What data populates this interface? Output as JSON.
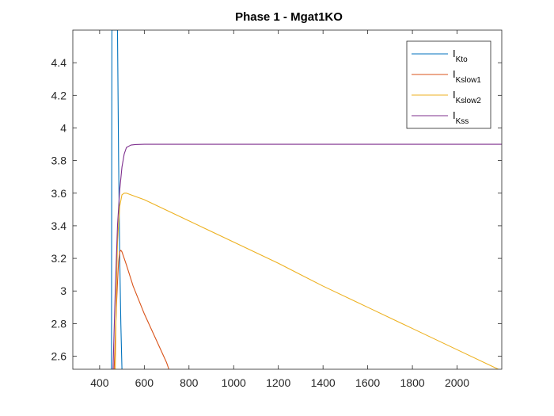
{
  "chart_data": {
    "type": "line",
    "title": "Phase 1 - Mgat1KO",
    "xlabel": "",
    "ylabel": "",
    "xlim": [
      280,
      2200
    ],
    "ylim": [
      2.52,
      4.6
    ],
    "x_ticks": [
      400,
      600,
      800,
      1000,
      1200,
      1400,
      1600,
      1800,
      2000
    ],
    "y_ticks": [
      2.6,
      2.8,
      3,
      3.2,
      3.4,
      3.6,
      3.8,
      4,
      4.2,
      4.4
    ],
    "x_tick_labels": [
      "400",
      "600",
      "800",
      "1000",
      "1200",
      "1400",
      "1600",
      "1800",
      "2000"
    ],
    "y_tick_labels": [
      "2.6",
      "2.8",
      "3",
      "3.2",
      "3.4",
      "3.6",
      "3.8",
      "4",
      "4.2",
      "4.4"
    ],
    "grid": false,
    "legend_position": "top-right",
    "series": [
      {
        "name": "I_Kto",
        "legend_main": "I",
        "legend_sub": "Kto",
        "color": "#0072BD",
        "x": [
          453,
          455,
          480,
          485,
          490,
          495,
          500
        ],
        "y": [
          2.52,
          4.6,
          4.6,
          3.8,
          3.2,
          2.8,
          2.52
        ]
      },
      {
        "name": "I_Kslow1",
        "legend_main": "I",
        "legend_sub": "Kslow1",
        "color": "#D95319",
        "x": [
          465,
          470,
          475,
          480,
          485,
          490,
          495,
          500,
          520,
          550,
          600,
          650,
          700,
          710
        ],
        "y": [
          2.52,
          2.7,
          2.9,
          3.05,
          3.18,
          3.24,
          3.25,
          3.24,
          3.16,
          3.03,
          2.86,
          2.71,
          2.56,
          2.52
        ]
      },
      {
        "name": "I_Kslow2",
        "legend_main": "I",
        "legend_sub": "Kslow2",
        "color": "#EDB120",
        "x": [
          470,
          475,
          480,
          490,
          500,
          510,
          520,
          540,
          600,
          800,
          1000,
          1200,
          1400,
          1600,
          1800,
          2000,
          2200
        ],
        "y": [
          2.52,
          3.0,
          3.3,
          3.52,
          3.59,
          3.6,
          3.6,
          3.59,
          3.56,
          3.43,
          3.3,
          3.17,
          3.03,
          2.9,
          2.77,
          2.64,
          2.51
        ]
      },
      {
        "name": "I_Kss",
        "legend_main": "I",
        "legend_sub": "Kss",
        "color": "#7E2F8E",
        "x": [
          460,
          470,
          480,
          490,
          500,
          510,
          520,
          540,
          560,
          600,
          700,
          1000,
          1500,
          2000,
          2200
        ],
        "y": [
          2.52,
          3.0,
          3.4,
          3.62,
          3.76,
          3.84,
          3.88,
          3.895,
          3.898,
          3.9,
          3.9,
          3.9,
          3.9,
          3.9,
          3.9
        ]
      }
    ]
  },
  "colors": {
    "axis": "#262626",
    "background": "#ffffff",
    "legend_border": "#262626"
  }
}
